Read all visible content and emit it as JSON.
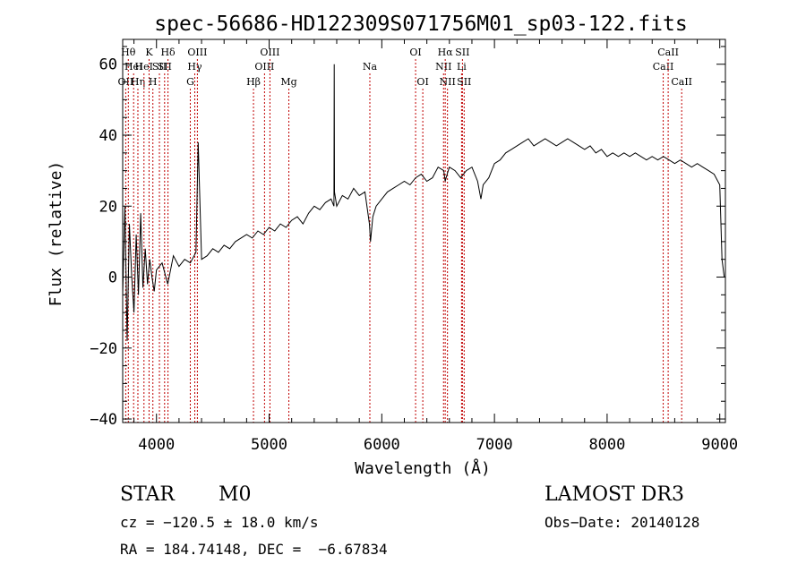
{
  "chart_data": {
    "type": "line",
    "title": "spec-56686-HD122309S071756M01_sp03-122.fits",
    "xlabel": "Wavelength (Å)",
    "ylabel": "Flux (relative)",
    "xlim": [
      3700,
      9050
    ],
    "ylim": [
      -41,
      67
    ],
    "xticks": [
      4000,
      5000,
      6000,
      7000,
      8000,
      9000
    ],
    "yticks": [
      -40,
      -20,
      0,
      20,
      40,
      60
    ],
    "grid": false,
    "series": [
      {
        "x": [
          3700,
          3720,
          3740,
          3760,
          3780,
          3800,
          3820,
          3840,
          3860,
          3880,
          3900,
          3920,
          3940,
          3960,
          3980,
          4000,
          4050,
          4100,
          4150,
          4200,
          4250,
          4300,
          4350,
          4370,
          4400,
          4450,
          4500,
          4550,
          4600,
          4650,
          4700,
          4750,
          4800,
          4850,
          4900,
          4950,
          5000,
          5050,
          5100,
          5150,
          5200,
          5250,
          5300,
          5350,
          5400,
          5450,
          5500,
          5550,
          5575,
          5578,
          5580,
          5600,
          5650,
          5700,
          5750,
          5800,
          5850,
          5890,
          5900,
          5920,
          5950,
          6000,
          6050,
          6100,
          6150,
          6200,
          6250,
          6300,
          6350,
          6400,
          6450,
          6500,
          6550,
          6563,
          6580,
          6600,
          6650,
          6700,
          6750,
          6800,
          6850,
          6880,
          6900,
          6950,
          7000,
          7050,
          7100,
          7150,
          7200,
          7250,
          7300,
          7350,
          7400,
          7450,
          7500,
          7550,
          7600,
          7650,
          7700,
          7750,
          7800,
          7850,
          7900,
          7950,
          8000,
          8050,
          8100,
          8150,
          8200,
          8250,
          8300,
          8350,
          8400,
          8450,
          8500,
          8550,
          8600,
          8650,
          8700,
          8750,
          8800,
          8850,
          8900,
          8950,
          9000,
          9020,
          9040
        ],
        "y": [
          -5,
          20,
          -18,
          15,
          0,
          -10,
          12,
          -5,
          18,
          -3,
          8,
          -2,
          5,
          0,
          -4,
          2,
          4,
          -2,
          6,
          3,
          5,
          4,
          7,
          38,
          5,
          6,
          8,
          7,
          9,
          8,
          10,
          11,
          12,
          11,
          13,
          12,
          14,
          13,
          15,
          14,
          16,
          17,
          15,
          18,
          20,
          19,
          21,
          22,
          20,
          60,
          24,
          20,
          23,
          22,
          25,
          23,
          24,
          15,
          10,
          17,
          20,
          22,
          24,
          25,
          26,
          27,
          26,
          28,
          29,
          27,
          28,
          31,
          30,
          27,
          29,
          31,
          30,
          28,
          30,
          31,
          27,
          22,
          26,
          28,
          32,
          33,
          35,
          36,
          37,
          38,
          39,
          37,
          38,
          39,
          38,
          37,
          38,
          39,
          38,
          37,
          36,
          37,
          35,
          36,
          34,
          35,
          34,
          35,
          34,
          35,
          34,
          33,
          34,
          33,
          34,
          33,
          32,
          33,
          32,
          31,
          32,
          31,
          30,
          29,
          26,
          5,
          0
        ]
      }
    ],
    "line_markers": [
      {
        "x": 3727,
        "labels": [
          "OII"
        ],
        "row": 3
      },
      {
        "x": 3750,
        "labels": [
          "Hθ"
        ],
        "row": 1
      },
      {
        "x": 3797,
        "labels": [
          "HeI"
        ],
        "row": 2
      },
      {
        "x": 3835,
        "labels": [
          "Hη"
        ],
        "row": 3
      },
      {
        "x": 3889,
        "labels": [
          "HeI"
        ],
        "row": 2
      },
      {
        "x": 3934,
        "labels": [
          "K"
        ],
        "row": 1
      },
      {
        "x": 3968,
        "labels": [
          "H"
        ],
        "row": 3
      },
      {
        "x": 4026,
        "labels": [
          "SII"
        ],
        "row": 2
      },
      {
        "x": 4102,
        "labels": [
          "Hδ"
        ],
        "row": 1
      },
      {
        "x": 4072,
        "labels": [
          "SII"
        ],
        "row": 2
      },
      {
        "x": 4300,
        "labels": [
          "G"
        ],
        "row": 3
      },
      {
        "x": 4340,
        "labels": [
          "Hγ"
        ],
        "row": 2
      },
      {
        "x": 4363,
        "labels": [
          "OIII"
        ],
        "row": 1
      },
      {
        "x": 4861,
        "labels": [
          "Hβ"
        ],
        "row": 3
      },
      {
        "x": 4959,
        "labels": [
          "OIII"
        ],
        "row": 2
      },
      {
        "x": 5007,
        "labels": [
          "OIII"
        ],
        "row": 1
      },
      {
        "x": 5175,
        "labels": [
          "Mg"
        ],
        "row": 3
      },
      {
        "x": 5894,
        "labels": [
          "Na"
        ],
        "row": 2
      },
      {
        "x": 6300,
        "labels": [
          "OI"
        ],
        "row": 1
      },
      {
        "x": 6364,
        "labels": [
          "OI"
        ],
        "row": 3
      },
      {
        "x": 6548,
        "labels": [
          "NII"
        ],
        "row": 2
      },
      {
        "x": 6563,
        "labels": [
          "Hα"
        ],
        "row": 1
      },
      {
        "x": 6583,
        "labels": [
          "NII"
        ],
        "row": 3
      },
      {
        "x": 6708,
        "labels": [
          "Li"
        ],
        "row": 2
      },
      {
        "x": 6716,
        "labels": [
          "SII"
        ],
        "row": 1
      },
      {
        "x": 6731,
        "labels": [
          "SII"
        ],
        "row": 3
      },
      {
        "x": 8498,
        "labels": [
          "CaII"
        ],
        "row": 2
      },
      {
        "x": 8542,
        "labels": [
          "CaII"
        ],
        "row": 1
      },
      {
        "x": 8662,
        "labels": [
          "CaII"
        ],
        "row": 3
      }
    ]
  },
  "info": {
    "object_class": "STAR",
    "subclass": "M0",
    "survey": "LAMOST DR3",
    "redshift": "cz = −120.5 ± 18.0 km/s",
    "obs_date": "Obs−Date: 20140128",
    "coords": "RA = 184.74148, DEC =  −6.67834"
  },
  "colors": {
    "spectrum": "#000000",
    "marker_line": "#c00000",
    "axes": "#000000"
  }
}
